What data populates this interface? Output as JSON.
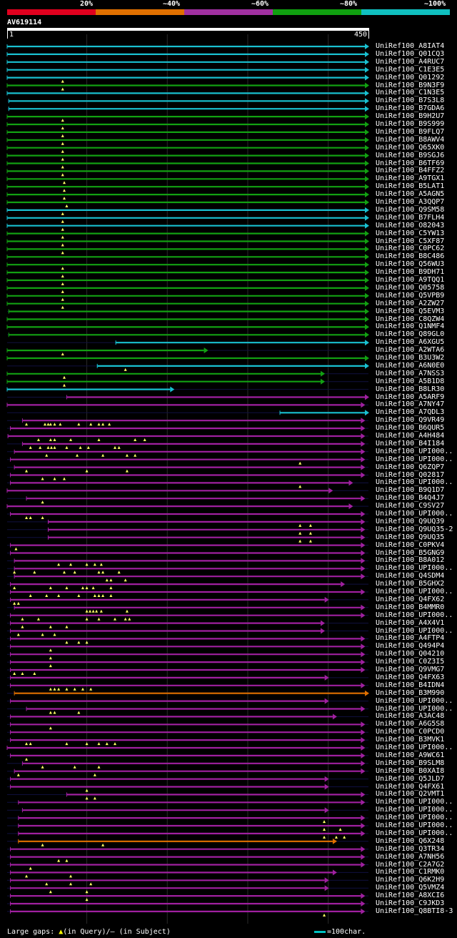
{
  "legend": {
    "labels": [
      "20%",
      "~40%",
      "~60%",
      "~80%",
      "~100%"
    ],
    "colors": [
      "#e0001e",
      "#e07000",
      "#a030a0",
      "#10a010",
      "#10c0c0"
    ]
  },
  "query": {
    "name": "AV619114",
    "start": "1",
    "end": "450",
    "length": 450
  },
  "footer": {
    "gaps_prefix": "Large gaps:",
    "gaps_query": "(in Query)/",
    "gaps_dash": "–",
    "gaps_subject": "(in Subject)",
    "scale": "=100char."
  },
  "colors": {
    "cyan": "#19c0d0",
    "green": "#12a012",
    "magenta": "#a020a0",
    "orange": "#e07000",
    "gap": "#ffff66"
  },
  "hits": [
    {
      "name": "UniRef100_A8IAT4",
      "color": "cyan",
      "start": 1,
      "end": 450,
      "gaps": []
    },
    {
      "name": "UniRef100_Q01CQ3",
      "color": "cyan",
      "start": 1,
      "end": 450,
      "gaps": []
    },
    {
      "name": "UniRef100_A4RUC7",
      "color": "cyan",
      "start": 1,
      "end": 450,
      "gaps": []
    },
    {
      "name": "UniRef100_C1E3E5",
      "color": "cyan",
      "start": 1,
      "end": 450,
      "gaps": []
    },
    {
      "name": "UniRef100_Q01292",
      "color": "cyan",
      "start": 1,
      "end": 450,
      "gaps": [
        70
      ]
    },
    {
      "name": "UniRef100_B9N3F9",
      "color": "green",
      "start": 1,
      "end": 450,
      "gaps": [
        70
      ]
    },
    {
      "name": "UniRef100_C1N3E5",
      "color": "cyan",
      "start": 1,
      "end": 450,
      "gaps": []
    },
    {
      "name": "UniRef100_B7S3L8",
      "color": "cyan",
      "start": 3,
      "end": 450,
      "gaps": []
    },
    {
      "name": "UniRef100_B7GDA6",
      "color": "cyan",
      "start": 3,
      "end": 450,
      "gaps": []
    },
    {
      "name": "UniRef100_B9H2U7",
      "color": "green",
      "start": 1,
      "end": 450,
      "gaps": [
        70
      ]
    },
    {
      "name": "UniRef100_B9S999",
      "color": "green",
      "start": 1,
      "end": 450,
      "gaps": [
        70
      ]
    },
    {
      "name": "UniRef100_B9FLQ7",
      "color": "green",
      "start": 1,
      "end": 450,
      "gaps": [
        70
      ]
    },
    {
      "name": "UniRef100_B8AWV4",
      "color": "green",
      "start": 1,
      "end": 450,
      "gaps": [
        70
      ]
    },
    {
      "name": "UniRef100_Q65XK0",
      "color": "green",
      "start": 1,
      "end": 450,
      "gaps": [
        70
      ]
    },
    {
      "name": "UniRef100_B9SGJ6",
      "color": "green",
      "start": 1,
      "end": 450,
      "gaps": [
        70
      ]
    },
    {
      "name": "UniRef100_B6TF69",
      "color": "green",
      "start": 1,
      "end": 450,
      "gaps": [
        70
      ]
    },
    {
      "name": "UniRef100_B4FFZ2",
      "color": "green",
      "start": 1,
      "end": 450,
      "gaps": [
        70
      ]
    },
    {
      "name": "UniRef100_A9TGX1",
      "color": "green",
      "start": 1,
      "end": 450,
      "gaps": [
        72
      ]
    },
    {
      "name": "UniRef100_B5LAT1",
      "color": "green",
      "start": 1,
      "end": 450,
      "gaps": [
        72
      ]
    },
    {
      "name": "UniRef100_A5AGN5",
      "color": "green",
      "start": 1,
      "end": 450,
      "gaps": [
        72
      ]
    },
    {
      "name": "UniRef100_A3QQP7",
      "color": "green",
      "start": 1,
      "end": 450,
      "gaps": [
        75
      ]
    },
    {
      "name": "UniRef100_Q9SM58",
      "color": "cyan",
      "start": 1,
      "end": 450,
      "gaps": [
        70
      ]
    },
    {
      "name": "UniRef100_B7FLH4",
      "color": "cyan",
      "start": 1,
      "end": 450,
      "gaps": [
        70
      ]
    },
    {
      "name": "UniRef100_O82043",
      "color": "cyan",
      "start": 1,
      "end": 450,
      "gaps": [
        70
      ]
    },
    {
      "name": "UniRef100_C5YW13",
      "color": "green",
      "start": 1,
      "end": 450,
      "gaps": [
        70
      ]
    },
    {
      "name": "UniRef100_C5XF87",
      "color": "green",
      "start": 1,
      "end": 450,
      "gaps": [
        70
      ]
    },
    {
      "name": "UniRef100_C0PC62",
      "color": "green",
      "start": 1,
      "end": 450,
      "gaps": [
        70
      ]
    },
    {
      "name": "UniRef100_B8C486",
      "color": "green",
      "start": 1,
      "end": 450,
      "gaps": []
    },
    {
      "name": "UniRef100_Q56WU3",
      "color": "green",
      "start": 1,
      "end": 450,
      "gaps": [
        70
      ]
    },
    {
      "name": "UniRef100_B9DH71",
      "color": "green",
      "start": 1,
      "end": 450,
      "gaps": [
        70
      ]
    },
    {
      "name": "UniRef100_A9TQQ1",
      "color": "green",
      "start": 1,
      "end": 450,
      "gaps": [
        70
      ]
    },
    {
      "name": "UniRef100_Q05758",
      "color": "green",
      "start": 1,
      "end": 450,
      "gaps": [
        70
      ]
    },
    {
      "name": "UniRef100_Q5VPB9",
      "color": "green",
      "start": 1,
      "end": 450,
      "gaps": [
        70
      ]
    },
    {
      "name": "UniRef100_A2ZW27",
      "color": "green",
      "start": 1,
      "end": 450,
      "gaps": [
        70
      ]
    },
    {
      "name": "UniRef100_Q5EVM3",
      "color": "green",
      "start": 3,
      "end": 450,
      "gaps": []
    },
    {
      "name": "UniRef100_C8QZW4",
      "color": "green",
      "start": 1,
      "end": 450,
      "gaps": []
    },
    {
      "name": "UniRef100_Q1NMF4",
      "color": "green",
      "start": 1,
      "end": 450,
      "gaps": []
    },
    {
      "name": "UniRef100_Q89GL0",
      "color": "green",
      "start": 3,
      "end": 450,
      "gaps": []
    },
    {
      "name": "UniRef100_A6XGU5",
      "color": "cyan",
      "start": 136,
      "end": 450,
      "gaps": []
    },
    {
      "name": "UniRef100_A2WTA6",
      "color": "green",
      "start": 1,
      "end": 250,
      "gaps": [
        70
      ]
    },
    {
      "name": "UniRef100_B3U3W2",
      "color": "green",
      "start": 1,
      "end": 450,
      "gaps": []
    },
    {
      "name": "UniRef100_A6N0E0",
      "color": "cyan",
      "start": 113,
      "end": 450,
      "gaps": [
        148
      ]
    },
    {
      "name": "UniRef100_A7NSS3",
      "color": "green",
      "start": 1,
      "end": 395,
      "gaps": [
        72
      ]
    },
    {
      "name": "UniRef100_A5B1D8",
      "color": "green",
      "start": 1,
      "end": 395,
      "gaps": [
        72
      ]
    },
    {
      "name": "UniRef100_B8LR30",
      "color": "cyan",
      "start": 1,
      "end": 208,
      "gaps": []
    },
    {
      "name": "UniRef100_A5ARF9",
      "color": "magenta",
      "start": 75,
      "end": 450,
      "gaps": []
    },
    {
      "name": "UniRef100_A7NY47",
      "color": "magenta",
      "start": 1,
      "end": 445,
      "gaps": []
    },
    {
      "name": "UniRef100_A7QDL3",
      "color": "cyan",
      "start": 340,
      "end": 450,
      "gaps": []
    },
    {
      "name": "UniRef100_Q9VR49",
      "color": "magenta",
      "start": 20,
      "end": 445,
      "gaps": [
        25,
        48,
        52,
        55,
        60,
        67,
        90,
        105,
        115,
        120,
        128
      ]
    },
    {
      "name": "UniRef100_B6QUR5",
      "color": "magenta",
      "start": 5,
      "end": 445,
      "gaps": []
    },
    {
      "name": "UniRef100_A4H484",
      "color": "magenta",
      "start": 2,
      "end": 445,
      "gaps": [
        40,
        55,
        60,
        80,
        115,
        160,
        172
      ]
    },
    {
      "name": "UniRef100_B4I184",
      "color": "magenta",
      "start": 20,
      "end": 445,
      "gaps": [
        30,
        42,
        52,
        56,
        60,
        75,
        92,
        102,
        135,
        140
      ]
    },
    {
      "name": "UniRef100_UPI000..",
      "color": "magenta",
      "start": 10,
      "end": 445,
      "gaps": [
        50,
        88,
        120,
        150,
        160
      ]
    },
    {
      "name": "UniRef100_UPI000..",
      "color": "magenta",
      "start": 5,
      "end": 445,
      "gaps": [
        365
      ]
    },
    {
      "name": "UniRef100_Q6ZQP7",
      "color": "magenta",
      "start": 10,
      "end": 445,
      "gaps": [
        25,
        100,
        150
      ]
    },
    {
      "name": "UniRef100_Q02817",
      "color": "magenta",
      "start": 5,
      "end": 445,
      "gaps": [
        45,
        60,
        72
      ]
    },
    {
      "name": "UniRef100_UPI000..",
      "color": "magenta",
      "start": 5,
      "end": 430,
      "gaps": [
        365
      ]
    },
    {
      "name": "UniRef100_B9Q1D7",
      "color": "magenta",
      "start": 1,
      "end": 405,
      "gaps": []
    },
    {
      "name": "UniRef100_B4Q4J7",
      "color": "magenta",
      "start": 25,
      "end": 445,
      "gaps": [
        45
      ]
    },
    {
      "name": "UniRef100_C9SV27",
      "color": "magenta",
      "start": 1,
      "end": 430,
      "gaps": []
    },
    {
      "name": "UniRef100_UPI000..",
      "color": "magenta",
      "start": 5,
      "end": 445,
      "gaps": [
        25,
        30,
        45
      ]
    },
    {
      "name": "UniRef100_Q9UQ39",
      "color": "magenta",
      "start": 52,
      "end": 445,
      "gaps": [
        365,
        378
      ]
    },
    {
      "name": "UniRef100_Q9UQ35-2",
      "color": "magenta",
      "start": 52,
      "end": 445,
      "gaps": [
        365,
        378
      ]
    },
    {
      "name": "UniRef100_Q9UQ35",
      "color": "magenta",
      "start": 52,
      "end": 445,
      "gaps": [
        365,
        378
      ]
    },
    {
      "name": "UniRef100_C0PKV4",
      "color": "magenta",
      "start": 5,
      "end": 445,
      "gaps": [
        12
      ]
    },
    {
      "name": "UniRef100_B5GNG9",
      "color": "magenta",
      "start": 5,
      "end": 445,
      "gaps": []
    },
    {
      "name": "UniRef100_B8A012",
      "color": "magenta",
      "start": 10,
      "end": 445,
      "gaps": [
        65,
        80,
        100,
        110,
        118
      ]
    },
    {
      "name": "UniRef100_UPI000..",
      "color": "magenta",
      "start": 10,
      "end": 445,
      "gaps": [
        10,
        35,
        72,
        85,
        115,
        120,
        140
      ]
    },
    {
      "name": "UniRef100_Q4SDM4",
      "color": "magenta",
      "start": 10,
      "end": 445,
      "gaps": [
        125,
        130,
        148
      ]
    },
    {
      "name": "UniRef100_B5GHX2",
      "color": "magenta",
      "start": 5,
      "end": 420,
      "gaps": [
        10,
        55,
        75,
        95,
        100,
        108,
        130
      ]
    },
    {
      "name": "UniRef100_UPI000..",
      "color": "magenta",
      "start": 5,
      "end": 445,
      "gaps": [
        30,
        50,
        65,
        90,
        110,
        115,
        120,
        130
      ]
    },
    {
      "name": "UniRef100_Q4FX62",
      "color": "magenta",
      "start": 5,
      "end": 400,
      "gaps": [
        10,
        15
      ]
    },
    {
      "name": "UniRef100_B4MMR0",
      "color": "magenta",
      "start": 10,
      "end": 445,
      "gaps": [
        100,
        104,
        108,
        112,
        118,
        150
      ]
    },
    {
      "name": "UniRef100_UPI000..",
      "color": "magenta",
      "start": 5,
      "end": 445,
      "gaps": [
        20,
        40,
        100,
        115,
        135,
        148,
        153
      ]
    },
    {
      "name": "UniRef100_A4X4V1",
      "color": "magenta",
      "start": 5,
      "end": 395,
      "gaps": [
        20,
        55,
        75
      ]
    },
    {
      "name": "UniRef100_UPI000..",
      "color": "magenta",
      "start": 5,
      "end": 395,
      "gaps": [
        15,
        45,
        60
      ]
    },
    {
      "name": "UniRef100_A4FTP4",
      "color": "magenta",
      "start": 5,
      "end": 445,
      "gaps": [
        75,
        90,
        100
      ]
    },
    {
      "name": "UniRef100_Q494P4",
      "color": "magenta",
      "start": 5,
      "end": 445,
      "gaps": [
        55
      ]
    },
    {
      "name": "UniRef100_Q04210",
      "color": "magenta",
      "start": 5,
      "end": 445,
      "gaps": [
        55
      ]
    },
    {
      "name": "UniRef100_C0Z3I5",
      "color": "magenta",
      "start": 5,
      "end": 445,
      "gaps": [
        55
      ]
    },
    {
      "name": "UniRef100_Q9VMG7",
      "color": "magenta",
      "start": 5,
      "end": 445,
      "gaps": [
        10,
        20,
        35
      ]
    },
    {
      "name": "UniRef100_Q4FX63",
      "color": "magenta",
      "start": 5,
      "end": 400,
      "gaps": []
    },
    {
      "name": "UniRef100_B4IDN4",
      "color": "magenta",
      "start": 5,
      "end": 445,
      "gaps": [
        55,
        60,
        65,
        75,
        85,
        95,
        105
      ]
    },
    {
      "name": "UniRef100_B3M990",
      "color": "orange",
      "start": 10,
      "end": 450,
      "gaps": []
    },
    {
      "name": "UniRef100_UPI000..",
      "color": "magenta",
      "start": 5,
      "end": 400,
      "gaps": []
    },
    {
      "name": "UniRef100_UPI000..",
      "color": "magenta",
      "start": 25,
      "end": 445,
      "gaps": [
        55,
        60,
        90
      ]
    },
    {
      "name": "UniRef100_A3AC48",
      "color": "magenta",
      "start": 5,
      "end": 410,
      "gaps": []
    },
    {
      "name": "UniRef100_A6G5S8",
      "color": "magenta",
      "start": 5,
      "end": 445,
      "gaps": [
        55
      ]
    },
    {
      "name": "UniRef100_C0PCD0",
      "color": "magenta",
      "start": 5,
      "end": 445,
      "gaps": []
    },
    {
      "name": "UniRef100_B3MVK1",
      "color": "magenta",
      "start": 5,
      "end": 445,
      "gaps": [
        25,
        30,
        75,
        100,
        115,
        125,
        135
      ]
    },
    {
      "name": "UniRef100_UPI000..",
      "color": "magenta",
      "start": 1,
      "end": 445,
      "gaps": []
    },
    {
      "name": "UniRef100_A9WC61",
      "color": "magenta",
      "start": 5,
      "end": 445,
      "gaps": [
        25
      ]
    },
    {
      "name": "UniRef100_B9SLM8",
      "color": "magenta",
      "start": 20,
      "end": 445,
      "gaps": [
        45,
        85,
        115
      ]
    },
    {
      "name": "UniRef100_B0XAI8",
      "color": "magenta",
      "start": 10,
      "end": 445,
      "gaps": [
        15,
        110
      ]
    },
    {
      "name": "UniRef100_Q5JLD7",
      "color": "magenta",
      "start": 5,
      "end": 400,
      "gaps": []
    },
    {
      "name": "UniRef100_Q4FX61",
      "color": "magenta",
      "start": 5,
      "end": 400,
      "gaps": [
        100
      ]
    },
    {
      "name": "UniRef100_Q2VMT1",
      "color": "magenta",
      "start": 75,
      "end": 445,
      "gaps": [
        100,
        110
      ]
    },
    {
      "name": "UniRef100_UPI000..",
      "color": "magenta",
      "start": 15,
      "end": 445,
      "gaps": []
    },
    {
      "name": "UniRef100_UPI000..",
      "color": "magenta",
      "start": 20,
      "end": 400,
      "gaps": []
    },
    {
      "name": "UniRef100_UPI000..",
      "color": "magenta",
      "start": 15,
      "end": 445,
      "gaps": [
        395
      ]
    },
    {
      "name": "UniRef100_UPI000..",
      "color": "magenta",
      "start": 15,
      "end": 445,
      "gaps": [
        395,
        415
      ]
    },
    {
      "name": "UniRef100_UPI000..",
      "color": "magenta",
      "start": 15,
      "end": 445,
      "gaps": [
        395,
        410,
        420
      ]
    },
    {
      "name": "UniRef100_Q6X248",
      "color": "orange",
      "start": 15,
      "end": 410,
      "gaps": [
        45,
        120
      ]
    },
    {
      "name": "UniRef100_Q3TR34",
      "color": "magenta",
      "start": 5,
      "end": 445,
      "gaps": []
    },
    {
      "name": "UniRef100_A7NH56",
      "color": "magenta",
      "start": 5,
      "end": 445,
      "gaps": [
        65,
        75
      ]
    },
    {
      "name": "UniRef100_C2A7G2",
      "color": "magenta",
      "start": 5,
      "end": 445,
      "gaps": [
        30
      ]
    },
    {
      "name": "UniRef100_C1RMK0",
      "color": "magenta",
      "start": 5,
      "end": 410,
      "gaps": [
        25,
        80
      ]
    },
    {
      "name": "UniRef100_Q6K2H9",
      "color": "magenta",
      "start": 5,
      "end": 400,
      "gaps": [
        50,
        80,
        105
      ]
    },
    {
      "name": "UniRef100_Q5VMZ4",
      "color": "magenta",
      "start": 5,
      "end": 400,
      "gaps": [
        55,
        100
      ]
    },
    {
      "name": "UniRef100_A8XCI6",
      "color": "magenta",
      "start": 5,
      "end": 445,
      "gaps": [
        100
      ]
    },
    {
      "name": "UniRef100_C9JKD3",
      "color": "magenta",
      "start": 5,
      "end": 445,
      "gaps": []
    },
    {
      "name": "UniRef100_Q8BTI8-3",
      "color": "magenta",
      "start": 5,
      "end": 445,
      "gaps": [
        395
      ]
    }
  ]
}
